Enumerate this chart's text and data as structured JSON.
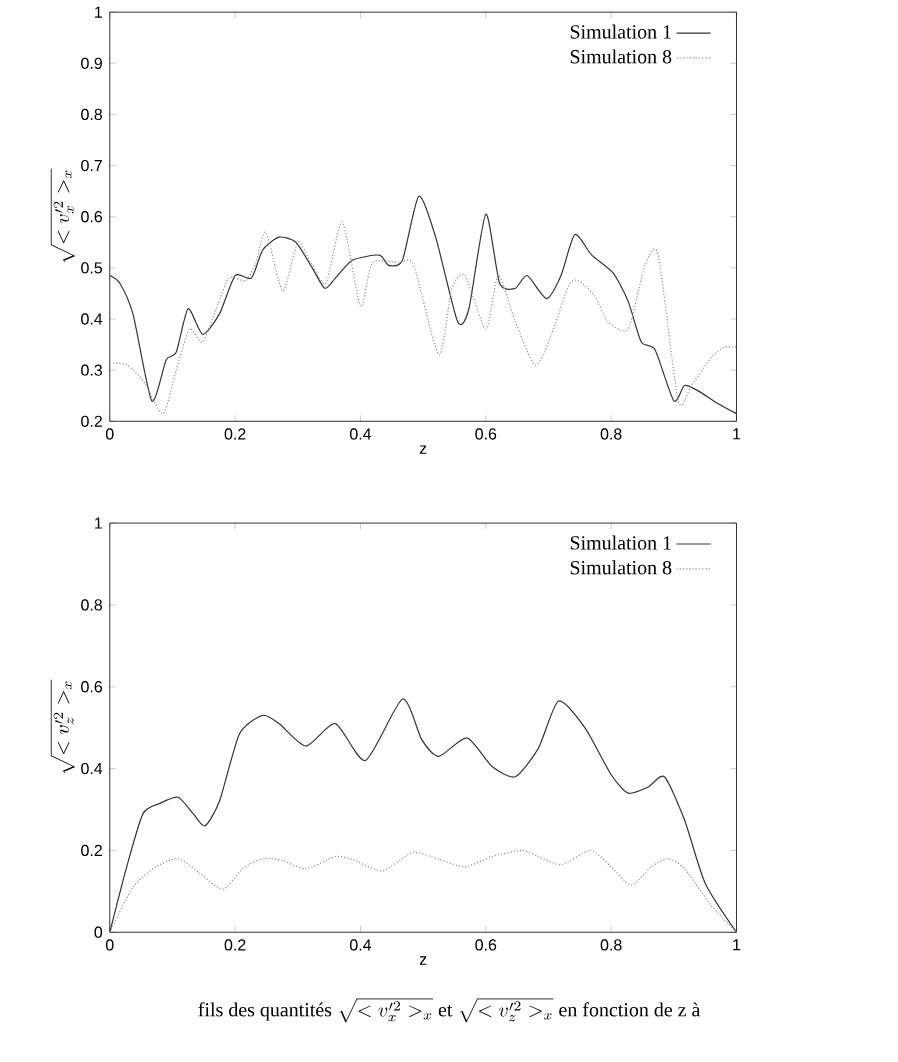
{
  "chart_data": [
    {
      "type": "line",
      "xlabel": "z",
      "ylabel": "\\sqrt{<v'^2_x>_x}",
      "xlim": [
        0,
        1
      ],
      "ylim": [
        0.2,
        1
      ],
      "xticks": [
        0,
        0.2,
        0.4,
        0.6,
        0.8,
        1
      ],
      "yticks": [
        0.2,
        0.3,
        0.4,
        0.5,
        0.6,
        0.7,
        0.8,
        0.9,
        1
      ],
      "legend": "top right",
      "marker": "none",
      "series": [
        {
          "name": "Simulation 1",
          "color": "#333333",
          "line_style": "solid",
          "x": [
            0,
            0.016,
            0.037,
            0.067,
            0.09,
            0.106,
            0.125,
            0.148,
            0.175,
            0.2,
            0.226,
            0.244,
            0.27,
            0.297,
            0.323,
            0.343,
            0.36,
            0.387,
            0.43,
            0.445,
            0.467,
            0.493,
            0.52,
            0.555,
            0.573,
            0.6,
            0.622,
            0.647,
            0.666,
            0.697,
            0.72,
            0.742,
            0.769,
            0.803,
            0.827,
            0.848,
            0.87,
            0.9,
            0.917,
            0.938,
            0.97,
            1
          ],
          "values": [
            0.485,
            0.47,
            0.41,
            0.24,
            0.32,
            0.335,
            0.42,
            0.37,
            0.41,
            0.485,
            0.48,
            0.535,
            0.56,
            0.55,
            0.5,
            0.46,
            0.48,
            0.515,
            0.525,
            0.505,
            0.515,
            0.64,
            0.56,
            0.395,
            0.42,
            0.605,
            0.47,
            0.46,
            0.485,
            0.44,
            0.485,
            0.565,
            0.525,
            0.49,
            0.435,
            0.355,
            0.34,
            0.24,
            0.27,
            0.26,
            0.235,
            0.215
          ]
        },
        {
          "name": "Simulation 8",
          "color": "#8c8c8c",
          "line_style": "dotted",
          "x": [
            0,
            0.027,
            0.053,
            0.085,
            0.106,
            0.127,
            0.148,
            0.17,
            0.19,
            0.217,
            0.233,
            0.249,
            0.276,
            0.3,
            0.321,
            0.345,
            0.371,
            0.4,
            0.419,
            0.461,
            0.485,
            0.525,
            0.546,
            0.567,
            0.6,
            0.62,
            0.647,
            0.679,
            0.705,
            0.732,
            0.748,
            0.774,
            0.795,
            0.827,
            0.854,
            0.875,
            0.907,
            0.928,
            0.96,
            0.98,
            1
          ],
          "values": [
            0.315,
            0.31,
            0.28,
            0.215,
            0.3,
            0.38,
            0.355,
            0.42,
            0.48,
            0.475,
            0.51,
            0.57,
            0.455,
            0.55,
            0.51,
            0.47,
            0.59,
            0.425,
            0.51,
            0.51,
            0.505,
            0.33,
            0.46,
            0.485,
            0.38,
            0.485,
            0.395,
            0.31,
            0.37,
            0.465,
            0.475,
            0.445,
            0.395,
            0.38,
            0.505,
            0.525,
            0.24,
            0.27,
            0.325,
            0.345,
            0.345
          ]
        }
      ]
    },
    {
      "type": "line",
      "xlabel": "z",
      "ylabel": "\\sqrt{<v'^2_z>_x}",
      "xlim": [
        0,
        1
      ],
      "ylim": [
        0,
        1
      ],
      "xticks": [
        0,
        0.2,
        0.4,
        0.6,
        0.8,
        1
      ],
      "yticks": [
        0,
        0.2,
        0.4,
        0.6,
        0.8,
        1
      ],
      "legend": "top right",
      "marker": "none",
      "annotations": [
        "\\mbox{fils des quantités }\\sqrt{<v'^2_x>_x}\\mbox{ et }\\sqrt{<v'^2_z>_x}\\mbox{ en fonction de z à}"
      ],
      "series": [
        {
          "name": "Simulation 1",
          "color": "#333333",
          "line_style": "solid",
          "x": [
            0,
            0.027,
            0.053,
            0.08,
            0.109,
            0.133,
            0.152,
            0.175,
            0.207,
            0.244,
            0.27,
            0.313,
            0.36,
            0.408,
            0.467,
            0.498,
            0.525,
            0.57,
            0.61,
            0.647,
            0.684,
            0.716,
            0.758,
            0.8,
            0.827,
            0.859,
            0.885,
            0.917,
            0.95,
            1
          ],
          "values": [
            0,
            0.16,
            0.29,
            0.315,
            0.33,
            0.29,
            0.26,
            0.32,
            0.485,
            0.53,
            0.51,
            0.455,
            0.51,
            0.42,
            0.57,
            0.47,
            0.43,
            0.475,
            0.405,
            0.38,
            0.45,
            0.565,
            0.5,
            0.385,
            0.34,
            0.355,
            0.38,
            0.275,
            0.12,
            0
          ]
        },
        {
          "name": "Simulation 8",
          "color": "#8c8c8c",
          "line_style": "dotted",
          "x": [
            0,
            0.037,
            0.074,
            0.109,
            0.143,
            0.18,
            0.212,
            0.244,
            0.276,
            0.313,
            0.36,
            0.387,
            0.435,
            0.483,
            0.525,
            0.567,
            0.61,
            0.658,
            0.684,
            0.721,
            0.767,
            0.8,
            0.832,
            0.864,
            0.891,
            0.917,
            0.96,
            1
          ],
          "values": [
            0,
            0.11,
            0.16,
            0.18,
            0.145,
            0.105,
            0.155,
            0.18,
            0.175,
            0.155,
            0.185,
            0.178,
            0.15,
            0.195,
            0.178,
            0.16,
            0.185,
            0.2,
            0.185,
            0.165,
            0.2,
            0.16,
            0.115,
            0.16,
            0.18,
            0.155,
            0.065,
            0
          ]
        }
      ]
    }
  ]
}
